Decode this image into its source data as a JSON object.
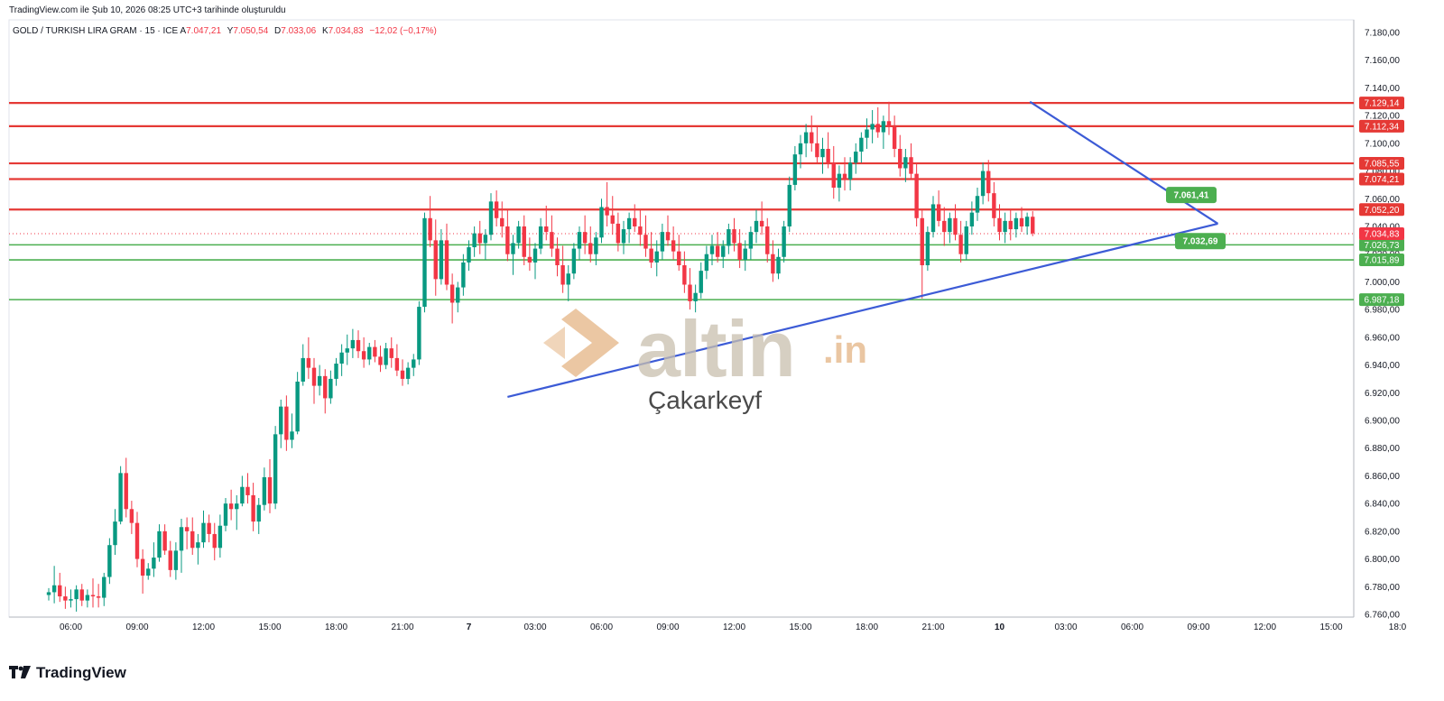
{
  "header": {
    "created_text": "TradingView.com ile Şub 10, 2026 08:25 UTC+3 tarihinde oluşturuldu"
  },
  "symbol": {
    "name": "GOLD / TURKISH LIRA GRAM · 15 · ICE",
    "open_label": "A",
    "open": "7.047,21",
    "high_label": "Y",
    "high": "7.050,54",
    "low_label": "D",
    "low": "7.033,06",
    "close_label": "K",
    "close": "7.034,83",
    "change": "−12,02 (−0,17%)"
  },
  "watermark": {
    "brand": "altin",
    "brand_suffix": ".in",
    "author": "Çakarkeyf"
  },
  "footer": {
    "logo_text": "TradingView"
  },
  "colors": {
    "up": "#089981",
    "down": "#f23645",
    "resistance": "#e53935",
    "support": "#4caf50",
    "trendline": "#3c5bd6",
    "label_green": "#4caf50"
  },
  "chart_data": {
    "type": "candlestick",
    "title": "GOLD / TURKISH LIRA GRAM · 15 · ICE",
    "ylim": [
      6760,
      7190
    ],
    "y_ticks": [
      "6.760,00",
      "6.780,00",
      "6.800,00",
      "6.820,00",
      "6.840,00",
      "6.860,00",
      "6.880,00",
      "6.900,00",
      "6.920,00",
      "6.940,00",
      "6.960,00",
      "6.980,00",
      "7.000,00",
      "7.020,00",
      "7.040,00",
      "7.060,00",
      "7.080,00",
      "7.100,00",
      "7.120,00",
      "7.140,00",
      "7.160,00",
      "7.180,00"
    ],
    "y_tick_values": [
      6760,
      6780,
      6800,
      6820,
      6840,
      6860,
      6880,
      6900,
      6920,
      6940,
      6960,
      6980,
      7000,
      7020,
      7040,
      7060,
      7080,
      7100,
      7120,
      7140,
      7160,
      7180
    ],
    "x_ticks": [
      "06:00",
      "09:00",
      "12:00",
      "15:00",
      "18:00",
      "21:00",
      "7",
      "03:00",
      "06:00",
      "09:00",
      "12:00",
      "15:00",
      "18:00",
      "21:00",
      "10",
      "03:00",
      "06:00",
      "09:00",
      "12:00",
      "15:00",
      "18:0"
    ],
    "x_tick_index": [
      4,
      16,
      28,
      40,
      52,
      64,
      76,
      88,
      100,
      112,
      124,
      136,
      148,
      160,
      172,
      184,
      196,
      208,
      220,
      232,
      244
    ],
    "grid": false,
    "horizontal_levels": [
      {
        "value": 7129.14,
        "label": "7.129,14",
        "kind": "resistance"
      },
      {
        "value": 7112.34,
        "label": "7.112,34",
        "kind": "resistance"
      },
      {
        "value": 7085.55,
        "label": "7.085,55",
        "kind": "resistance"
      },
      {
        "value": 7074.21,
        "label": "7.074,21",
        "kind": "resistance"
      },
      {
        "value": 7052.2,
        "label": "7.052,20",
        "kind": "resistance"
      },
      {
        "value": 7026.73,
        "label": "7.026,73",
        "kind": "support"
      },
      {
        "value": 7015.89,
        "label": "7.015,89",
        "kind": "support"
      },
      {
        "value": 6987.18,
        "label": "6.987,18",
        "kind": "support"
      }
    ],
    "current_price": {
      "value": 7034.83,
      "label": "7.034,83"
    },
    "trendlines": [
      {
        "name": "upper",
        "points": [
          [
            177.5,
            7130
          ],
          [
            211.5,
            7042
          ]
        ]
      },
      {
        "name": "lower",
        "points": [
          [
            83,
            6917
          ],
          [
            211.5,
            7042
          ]
        ]
      }
    ],
    "point_labels": [
      {
        "label": "7.061,41",
        "value": 7061.41,
        "at_index": 204
      },
      {
        "label": "7.032,69",
        "value": 7032.69,
        "at_index": 204
      }
    ],
    "candles": [
      [
        6774,
        6779,
        6770,
        6776
      ],
      [
        6776,
        6795,
        6768,
        6781
      ],
      [
        6781,
        6790,
        6769,
        6773
      ],
      [
        6773,
        6780,
        6764,
        6770
      ],
      [
        6770,
        6778,
        6765,
        6771
      ],
      [
        6771,
        6781,
        6762,
        6778
      ],
      [
        6778,
        6782,
        6766,
        6770
      ],
      [
        6770,
        6778,
        6765,
        6774
      ],
      [
        6774,
        6786,
        6765,
        6773
      ],
      [
        6773,
        6782,
        6765,
        6772
      ],
      [
        6772,
        6790,
        6766,
        6787
      ],
      [
        6787,
        6815,
        6782,
        6810
      ],
      [
        6810,
        6836,
        6803,
        6827
      ],
      [
        6827,
        6867,
        6825,
        6862
      ],
      [
        6862,
        6873,
        6830,
        6836
      ],
      [
        6836,
        6842,
        6818,
        6826
      ],
      [
        6826,
        6834,
        6794,
        6800
      ],
      [
        6800,
        6807,
        6775,
        6788
      ],
      [
        6788,
        6797,
        6785,
        6793
      ],
      [
        6793,
        6812,
        6787,
        6801
      ],
      [
        6801,
        6825,
        6798,
        6820
      ],
      [
        6820,
        6825,
        6803,
        6806
      ],
      [
        6806,
        6813,
        6787,
        6792
      ],
      [
        6792,
        6812,
        6785,
        6806
      ],
      [
        6806,
        6829,
        6790,
        6823
      ],
      [
        6823,
        6830,
        6807,
        6820
      ],
      [
        6820,
        6830,
        6803,
        6808
      ],
      [
        6808,
        6818,
        6796,
        6812
      ],
      [
        6812,
        6835,
        6808,
        6826
      ],
      [
        6826,
        6832,
        6812,
        6818
      ],
      [
        6818,
        6826,
        6799,
        6808
      ],
      [
        6808,
        6832,
        6801,
        6824
      ],
      [
        6824,
        6844,
        6820,
        6840
      ],
      [
        6840,
        6850,
        6828,
        6836
      ],
      [
        6836,
        6846,
        6821,
        6840
      ],
      [
        6840,
        6860,
        6838,
        6852
      ],
      [
        6852,
        6862,
        6840,
        6846
      ],
      [
        6846,
        6855,
        6820,
        6827
      ],
      [
        6827,
        6844,
        6818,
        6839
      ],
      [
        6839,
        6866,
        6835,
        6859
      ],
      [
        6859,
        6872,
        6833,
        6840
      ],
      [
        6840,
        6896,
        6836,
        6890
      ],
      [
        6890,
        6915,
        6880,
        6910
      ],
      [
        6910,
        6918,
        6878,
        6886
      ],
      [
        6886,
        6905,
        6880,
        6892
      ],
      [
        6892,
        6935,
        6890,
        6928
      ],
      [
        6928,
        6955,
        6925,
        6945
      ],
      [
        6945,
        6960,
        6930,
        6938
      ],
      [
        6938,
        6945,
        6912,
        6925
      ],
      [
        6925,
        6940,
        6918,
        6932
      ],
      [
        6932,
        6937,
        6905,
        6916
      ],
      [
        6916,
        6936,
        6912,
        6930
      ],
      [
        6930,
        6945,
        6925,
        6941
      ],
      [
        6941,
        6955,
        6932,
        6949
      ],
      [
        6949,
        6962,
        6940,
        6952
      ],
      [
        6952,
        6966,
        6945,
        6958
      ],
      [
        6958,
        6965,
        6945,
        6950
      ],
      [
        6950,
        6960,
        6938,
        6944
      ],
      [
        6944,
        6956,
        6940,
        6953
      ],
      [
        6953,
        6958,
        6942,
        6946
      ],
      [
        6946,
        6954,
        6935,
        6940
      ],
      [
        6940,
        6956,
        6937,
        6952
      ],
      [
        6952,
        6960,
        6938,
        6945
      ],
      [
        6945,
        6955,
        6932,
        6936
      ],
      [
        6936,
        6944,
        6925,
        6930
      ],
      [
        6930,
        6942,
        6926,
        6938
      ],
      [
        6938,
        6948,
        6932,
        6944
      ],
      [
        6944,
        6986,
        6940,
        6982
      ],
      [
        6982,
        7050,
        6978,
        7046
      ],
      [
        7046,
        7062,
        7025,
        7030
      ],
      [
        7030,
        7045,
        6990,
        7002
      ],
      [
        7002,
        7038,
        6998,
        7030
      ],
      [
        7030,
        7042,
        6994,
        6998
      ],
      [
        6998,
        7006,
        6970,
        6985
      ],
      [
        6985,
        7000,
        6978,
        6996
      ],
      [
        6996,
        7020,
        6990,
        7014
      ],
      [
        7014,
        7030,
        7008,
        7025
      ],
      [
        7025,
        7040,
        7018,
        7035
      ],
      [
        7035,
        7044,
        7020,
        7028
      ],
      [
        7028,
        7038,
        7016,
        7034
      ],
      [
        7034,
        7064,
        7030,
        7058
      ],
      [
        7058,
        7066,
        7040,
        7046
      ],
      [
        7046,
        7058,
        7032,
        7040
      ],
      [
        7040,
        7052,
        7015,
        7020
      ],
      [
        7020,
        7034,
        7005,
        7028
      ],
      [
        7028,
        7044,
        7024,
        7040
      ],
      [
        7040,
        7048,
        7012,
        7018
      ],
      [
        7018,
        7032,
        7008,
        7014
      ],
      [
        7014,
        7028,
        7002,
        7024
      ],
      [
        7024,
        7046,
        7020,
        7040
      ],
      [
        7040,
        7055,
        7030,
        7036
      ],
      [
        7036,
        7048,
        7018,
        7024
      ],
      [
        7024,
        7032,
        7004,
        7012
      ],
      [
        7012,
        7026,
        6992,
        6998
      ],
      [
        6998,
        7012,
        6986,
        7006
      ],
      [
        7006,
        7028,
        7002,
        7024
      ],
      [
        7024,
        7040,
        7016,
        7036
      ],
      [
        7036,
        7048,
        7020,
        7028
      ],
      [
        7028,
        7040,
        7014,
        7020
      ],
      [
        7020,
        7036,
        7012,
        7032
      ],
      [
        7032,
        7060,
        7028,
        7054
      ],
      [
        7054,
        7072,
        7040,
        7048
      ],
      [
        7048,
        7062,
        7034,
        7042
      ],
      [
        7042,
        7050,
        7022,
        7028
      ],
      [
        7028,
        7044,
        7020,
        7038
      ],
      [
        7038,
        7050,
        7028,
        7046
      ],
      [
        7046,
        7056,
        7036,
        7040
      ],
      [
        7040,
        7052,
        7026,
        7034
      ],
      [
        7034,
        7048,
        7018,
        7024
      ],
      [
        7024,
        7036,
        7010,
        7014
      ],
      [
        7014,
        7030,
        7004,
        7022
      ],
      [
        7022,
        7042,
        7016,
        7036
      ],
      [
        7036,
        7048,
        7026,
        7030
      ],
      [
        7030,
        7040,
        7016,
        7022
      ],
      [
        7022,
        7034,
        7008,
        7012
      ],
      [
        7012,
        7022,
        6992,
        6998
      ],
      [
        6998,
        7010,
        6980,
        6986
      ],
      [
        6986,
        6998,
        6978,
        6992
      ],
      [
        6992,
        7014,
        6988,
        7008
      ],
      [
        7008,
        7026,
        7002,
        7020
      ],
      [
        7020,
        7034,
        7012,
        7026
      ],
      [
        7026,
        7036,
        7014,
        7018
      ],
      [
        7018,
        7030,
        7010,
        7026
      ],
      [
        7026,
        7042,
        7020,
        7038
      ],
      [
        7038,
        7046,
        7022,
        7028
      ],
      [
        7028,
        7038,
        7010,
        7016
      ],
      [
        7016,
        7030,
        7008,
        7024
      ],
      [
        7024,
        7040,
        7016,
        7036
      ],
      [
        7036,
        7052,
        7028,
        7044
      ],
      [
        7044,
        7058,
        7034,
        7040
      ],
      [
        7040,
        7046,
        7014,
        7020
      ],
      [
        7020,
        7030,
        7000,
        7006
      ],
      [
        7006,
        7024,
        7002,
        7018
      ],
      [
        7018,
        7044,
        7014,
        7040
      ],
      [
        7040,
        7076,
        7036,
        7070
      ],
      [
        7070,
        7098,
        7066,
        7092
      ],
      [
        7092,
        7106,
        7082,
        7100
      ],
      [
        7100,
        7114,
        7090,
        7108
      ],
      [
        7108,
        7120,
        7094,
        7100
      ],
      [
        7100,
        7112,
        7086,
        7090
      ],
      [
        7090,
        7104,
        7078,
        7096
      ],
      [
        7096,
        7108,
        7082,
        7086
      ],
      [
        7086,
        7098,
        7060,
        7068
      ],
      [
        7068,
        7084,
        7058,
        7078
      ],
      [
        7078,
        7090,
        7066,
        7074
      ],
      [
        7074,
        7090,
        7066,
        7086
      ],
      [
        7086,
        7100,
        7078,
        7094
      ],
      [
        7094,
        7108,
        7086,
        7104
      ],
      [
        7104,
        7118,
        7096,
        7110
      ],
      [
        7110,
        7124,
        7100,
        7114
      ],
      [
        7114,
        7126,
        7104,
        7108
      ],
      [
        7108,
        7120,
        7096,
        7116
      ],
      [
        7116,
        7130,
        7106,
        7112
      ],
      [
        7112,
        7120,
        7090,
        7096
      ],
      [
        7096,
        7106,
        7076,
        7082
      ],
      [
        7082,
        7096,
        7072,
        7090
      ],
      [
        7090,
        7100,
        7074,
        7078
      ],
      [
        7078,
        7086,
        7040,
        7046
      ],
      [
        7046,
        7052,
        6988,
        7012
      ],
      [
        7012,
        7040,
        7008,
        7036
      ],
      [
        7036,
        7062,
        7032,
        7056
      ],
      [
        7056,
        7066,
        7040,
        7044
      ],
      [
        7044,
        7054,
        7026,
        7036
      ],
      [
        7036,
        7050,
        7028,
        7046
      ],
      [
        7046,
        7056,
        7030,
        7034
      ],
      [
        7034,
        7044,
        7014,
        7020
      ],
      [
        7020,
        7044,
        7016,
        7040
      ],
      [
        7040,
        7058,
        7034,
        7050
      ],
      [
        7050,
        7068,
        7044,
        7062
      ],
      [
        7062,
        7086,
        7056,
        7080
      ],
      [
        7080,
        7088,
        7058,
        7064
      ],
      [
        7064,
        7072,
        7040,
        7046
      ],
      [
        7046,
        7056,
        7030,
        7036
      ],
      [
        7036,
        7050,
        7028,
        7044
      ],
      [
        7044,
        7052,
        7030,
        7038
      ],
      [
        7038,
        7050,
        7032,
        7046
      ],
      [
        7046,
        7054,
        7036,
        7040
      ],
      [
        7040,
        7050,
        7034,
        7047
      ],
      [
        7047,
        7051,
        7033,
        7035
      ]
    ]
  }
}
